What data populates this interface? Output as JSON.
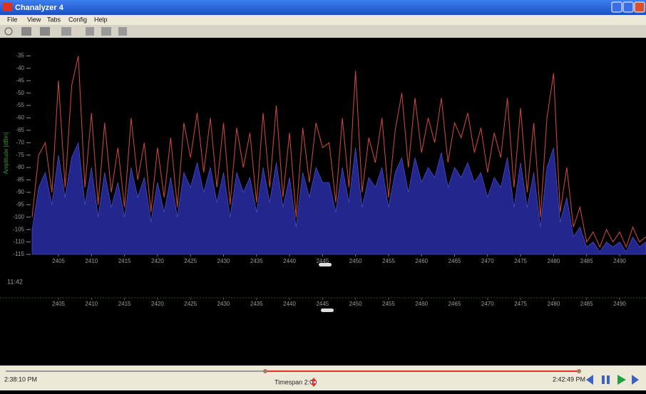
{
  "window": {
    "title": "Chanalyzer 4",
    "menu": [
      "File",
      "View",
      "Tabs",
      "Config",
      "Help"
    ]
  },
  "chart_data": {
    "type": "line",
    "ylabel": "Amplitude [dBm]",
    "x": [
      2401,
      2402,
      2403,
      2404,
      2405,
      2406,
      2407,
      2408,
      2409,
      2410,
      2411,
      2412,
      2413,
      2414,
      2415,
      2416,
      2417,
      2418,
      2419,
      2420,
      2421,
      2422,
      2423,
      2424,
      2425,
      2426,
      2427,
      2428,
      2429,
      2430,
      2431,
      2432,
      2433,
      2434,
      2435,
      2436,
      2437,
      2438,
      2439,
      2440,
      2441,
      2442,
      2443,
      2444,
      2445,
      2446,
      2447,
      2448,
      2449,
      2450,
      2451,
      2452,
      2453,
      2454,
      2455,
      2456,
      2457,
      2458,
      2459,
      2460,
      2461,
      2462,
      2463,
      2464,
      2465,
      2466,
      2467,
      2468,
      2469,
      2470,
      2471,
      2472,
      2473,
      2474,
      2475,
      2476,
      2477,
      2478,
      2479,
      2480,
      2481,
      2482,
      2483,
      2484,
      2485,
      2486,
      2487,
      2488,
      2489,
      2490,
      2491,
      2492,
      2493,
      2494
    ],
    "series": [
      {
        "color": "#c4463e",
        "area": false,
        "values": [
          -100,
          -75,
          -70,
          -90,
          -45,
          -88,
          -47,
          -35,
          -88,
          -58,
          -95,
          -62,
          -90,
          -72,
          -96,
          -60,
          -85,
          -70,
          -98,
          -72,
          -92,
          -68,
          -96,
          -62,
          -76,
          -58,
          -82,
          -60,
          -88,
          -62,
          -95,
          -64,
          -80,
          -66,
          -94,
          -58,
          -88,
          -55,
          -92,
          -66,
          -100,
          -64,
          -86,
          -62,
          -72,
          -70,
          -94,
          -60,
          -88,
          -41,
          -90,
          -68,
          -78,
          -60,
          -92,
          -65,
          -50,
          -80,
          -52,
          -74,
          -60,
          -70,
          -52,
          -78,
          -62,
          -68,
          -58,
          -74,
          -64,
          -82,
          -66,
          -76,
          -52,
          -88,
          -56,
          -90,
          -62,
          -100,
          -60,
          -42,
          -98,
          -80,
          -104,
          -96,
          -110,
          -106,
          -112,
          -105,
          -110,
          -106,
          -112,
          -104,
          -110,
          -108
        ]
      },
      {
        "color": "#2c2fb0",
        "area": true,
        "values": [
          -105,
          -88,
          -82,
          -95,
          -75,
          -92,
          -76,
          -70,
          -95,
          -80,
          -100,
          -82,
          -96,
          -86,
          -100,
          -80,
          -92,
          -84,
          -102,
          -86,
          -98,
          -84,
          -100,
          -82,
          -88,
          -78,
          -90,
          -80,
          -94,
          -82,
          -100,
          -82,
          -90,
          -84,
          -98,
          -80,
          -94,
          -78,
          -96,
          -84,
          -104,
          -82,
          -92,
          -80,
          -86,
          -86,
          -98,
          -80,
          -94,
          -72,
          -96,
          -84,
          -88,
          -80,
          -96,
          -82,
          -76,
          -90,
          -76,
          -86,
          -80,
          -84,
          -74,
          -88,
          -80,
          -84,
          -78,
          -86,
          -82,
          -92,
          -84,
          -88,
          -76,
          -96,
          -78,
          -96,
          -82,
          -104,
          -80,
          -72,
          -102,
          -92,
          -108,
          -104,
          -112,
          -110,
          -114,
          -110,
          -112,
          -110,
          -114,
          -108,
          -112,
          -110
        ]
      }
    ],
    "xlim": [
      2401,
      2494
    ],
    "xticks": [
      2405,
      2410,
      2415,
      2420,
      2425,
      2430,
      2435,
      2440,
      2445,
      2450,
      2455,
      2460,
      2465,
      2470,
      2475,
      2480,
      2485,
      2490
    ],
    "ylim": [
      -30,
      -115
    ],
    "yticks": [
      -35,
      -40,
      -45,
      -50,
      -55,
      -60,
      -65,
      -70,
      -75,
      -80,
      -85,
      -90,
      -95,
      -100,
      -105,
      -110,
      -115
    ]
  },
  "waterfall": {
    "time_label": "11:42"
  },
  "timeline": {
    "start": "2:38:10 PM",
    "timespan": "Timespan 2:00",
    "end": "2:42:49 PM"
  }
}
